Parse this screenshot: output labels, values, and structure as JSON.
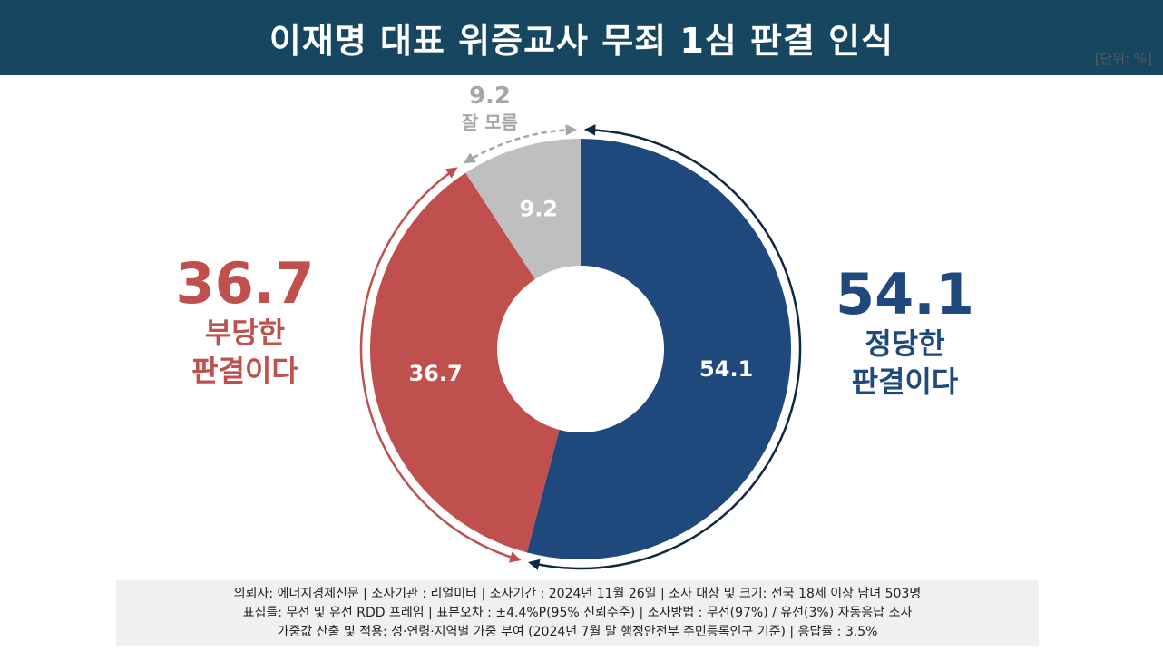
{
  "header": {
    "title": "이재명 대표 위증교사 무죄 1심 판결 인식",
    "unit": "[단위: %]"
  },
  "colors": {
    "header_bg": "#174661",
    "justified": "#1f497d",
    "unjustified": "#c0504d",
    "unknown": "#bfbfbf",
    "unknown_text": "#a6a6a6"
  },
  "callouts": {
    "justified": {
      "value": "54.1",
      "line1": "정당한",
      "line2": "판결이다"
    },
    "unjustified": {
      "value": "36.7",
      "line1": "부당한",
      "line2": "판결이다"
    },
    "unknown": {
      "value": "9.2",
      "label": "잘 모름"
    }
  },
  "chart_data": {
    "type": "pie",
    "donut": true,
    "start": "12 o'clock",
    "direction": "clockwise",
    "categories": [
      "정당한 판결이다",
      "부당한 판결이다",
      "잘 모름"
    ],
    "values": [
      54.1,
      36.7,
      9.2
    ],
    "colors": [
      "#1f497d",
      "#c0504d",
      "#bfbfbf"
    ],
    "data_labels": [
      "54.1",
      "36.7",
      "9.2"
    ]
  },
  "footer": {
    "line1": "의뢰사: 에너지경제신문 | 조사기관 : 리얼미터 | 조사기간 : 2024년 11월 26일 | 조사 대상 및 크기: 전국 18세 이상 남녀 503명",
    "line2": "표집틀: 무선 및 유선 RDD 프레임 | 표본오차 : ±4.4%P(95% 신뢰수준) | 조사방법 : 무선(97%) / 유선(3%) 자동응답 조사",
    "line3": "가중값 산출 및 적용: 성·연령·지역별 가중 부여 (2024년 7월 말 행정안전부 주민등록인구 기준) | 응답률 : 3.5%"
  }
}
